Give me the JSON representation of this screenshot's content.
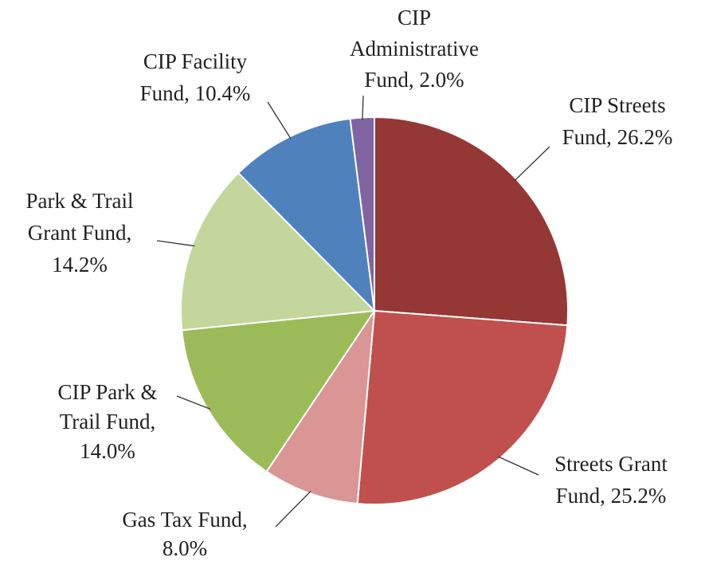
{
  "chart_data": {
    "type": "pie",
    "labels": [
      [
        "CIP Streets",
        "Fund, 26.2%"
      ],
      [
        "Streets Grant",
        "Fund, 25.2%"
      ],
      [
        "Gas Tax Fund,",
        "8.0%"
      ],
      [
        "CIP Park &",
        "Trail Fund,",
        "14.0%"
      ],
      [
        "Park & Trail",
        "Grant Fund,",
        "14.2%"
      ],
      [
        "CIP Facility",
        "Fund, 10.4%"
      ],
      [
        "CIP",
        "Administrative",
        "Fund, 2.0%"
      ]
    ],
    "values": [
      26.2,
      25.2,
      8.0,
      14.0,
      14.2,
      10.4,
      2.0
    ],
    "colors": [
      "#953735",
      "#c0504d",
      "#d99694",
      "#9bbb59",
      "#c3d69b",
      "#4f81bd",
      "#8064a2"
    ]
  }
}
